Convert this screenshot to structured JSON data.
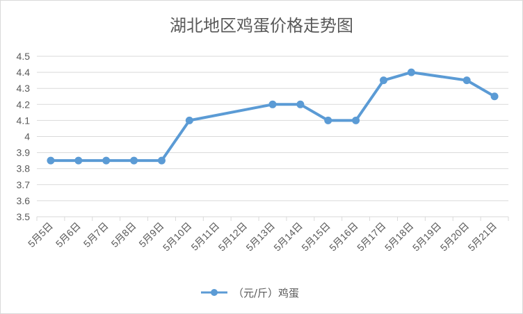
{
  "chart_data": {
    "type": "line",
    "title": "湖北地区鸡蛋价格走势图",
    "categories": [
      "5月5日",
      "5月6日",
      "5月7日",
      "5月8日",
      "5月9日",
      "5月10日",
      "5月11日",
      "5月12日",
      "5月13日",
      "5月14日",
      "5月15日",
      "5月16日",
      "5月17日",
      "5月18日",
      "5月19日",
      "5月20日",
      "5月21日"
    ],
    "y_ticks": [
      "3.5",
      "3.6",
      "3.7",
      "3.8",
      "3.9",
      "4",
      "4.1",
      "4.2",
      "4.3",
      "4.4",
      "4.5"
    ],
    "ylim": [
      3.5,
      4.5
    ],
    "series": [
      {
        "name": "（元/斤）鸡蛋",
        "points": [
          {
            "x": "5月5日",
            "y": 3.85
          },
          {
            "x": "5月6日",
            "y": 3.85
          },
          {
            "x": "5月7日",
            "y": 3.85
          },
          {
            "x": "5月8日",
            "y": 3.85
          },
          {
            "x": "5月9日",
            "y": 3.85
          },
          {
            "x": "5月10日",
            "y": 4.1
          },
          {
            "x": "5月13日",
            "y": 4.2
          },
          {
            "x": "5月14日",
            "y": 4.2
          },
          {
            "x": "5月15日",
            "y": 4.1
          },
          {
            "x": "5月16日",
            "y": 4.1
          },
          {
            "x": "5月17日",
            "y": 4.35
          },
          {
            "x": "5月18日",
            "y": 4.4
          },
          {
            "x": "5月20日",
            "y": 4.35
          },
          {
            "x": "5月21日",
            "y": 4.25
          }
        ]
      }
    ],
    "grid": true,
    "legend_position": "bottom",
    "colors": {
      "line": "#5b9bd5",
      "grid": "#d9d9d9",
      "text": "#595959"
    }
  }
}
